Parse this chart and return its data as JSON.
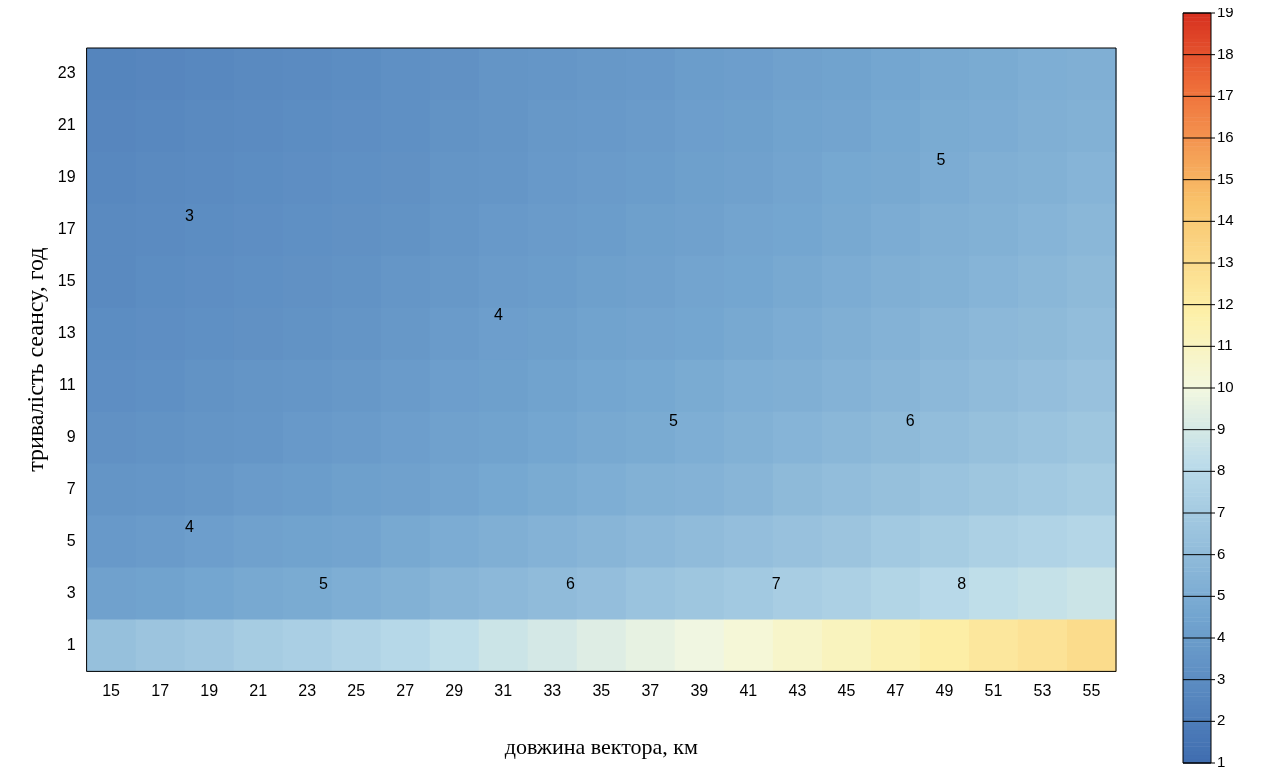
{
  "chart_data": {
    "type": "heatmap",
    "xlabel": "довжина вектора, км",
    "ylabel": "тривалість сеансу, год",
    "categories": [
      "15",
      "17",
      "19",
      "21",
      "23",
      "25",
      "27",
      "29",
      "31",
      "33",
      "35",
      "37",
      "39",
      "41",
      "43",
      "45",
      "47",
      "49",
      "51",
      "53",
      "55"
    ],
    "y_categories": [
      "23",
      "21",
      "19",
      "17",
      "15",
      "13",
      "11",
      "9",
      "7",
      "5",
      "3",
      "1"
    ],
    "cells": [
      [
        2.5,
        2.6,
        2.7,
        2.8,
        2.9,
        3.0,
        3.2,
        3.3,
        3.5,
        3.6,
        3.7,
        3.8,
        4.0,
        4.1,
        4.3,
        4.4,
        4.6,
        4.8,
        4.9,
        5.1,
        5.2
      ],
      [
        2.6,
        2.7,
        2.8,
        2.9,
        3.0,
        3.1,
        3.2,
        3.4,
        3.5,
        3.7,
        3.8,
        3.9,
        4.1,
        4.2,
        4.4,
        4.5,
        4.7,
        4.9,
        5.0,
        5.2,
        5.3
      ],
      [
        2.7,
        2.8,
        2.9,
        3.0,
        3.1,
        3.2,
        3.3,
        3.5,
        3.6,
        3.8,
        3.9,
        4.0,
        4.2,
        4.3,
        4.5,
        4.7,
        4.8,
        5.0,
        5.2,
        5.3,
        5.5
      ],
      [
        2.8,
        2.9,
        3.0,
        3.1,
        3.2,
        3.3,
        3.4,
        3.6,
        3.8,
        3.9,
        4.0,
        4.2,
        4.3,
        4.5,
        4.6,
        4.8,
        5.0,
        5.2,
        5.3,
        5.5,
        5.7
      ],
      [
        2.8,
        3.0,
        3.1,
        3.2,
        3.3,
        3.4,
        3.6,
        3.7,
        3.9,
        4.0,
        4.2,
        4.3,
        4.5,
        4.6,
        4.8,
        5.0,
        5.2,
        5.3,
        5.5,
        5.7,
        5.9
      ],
      [
        3.0,
        3.1,
        3.2,
        3.3,
        3.4,
        3.5,
        3.7,
        3.9,
        4.1,
        4.2,
        4.4,
        4.5,
        4.6,
        4.8,
        5.0,
        5.2,
        5.4,
        5.6,
        5.8,
        5.9,
        6.1
      ],
      [
        3.1,
        3.2,
        3.4,
        3.5,
        3.6,
        3.7,
        3.9,
        4.1,
        4.2,
        4.4,
        4.6,
        4.7,
        4.9,
        5.1,
        5.2,
        5.4,
        5.6,
        5.8,
        6.0,
        6.2,
        6.4
      ],
      [
        3.3,
        3.4,
        3.5,
        3.6,
        3.8,
        3.9,
        4.1,
        4.3,
        4.4,
        4.6,
        4.8,
        4.9,
        5.1,
        5.3,
        5.5,
        5.7,
        5.9,
        6.1,
        6.3,
        6.5,
        6.7
      ],
      [
        3.5,
        3.6,
        3.7,
        3.9,
        4.0,
        4.2,
        4.3,
        4.5,
        4.7,
        4.9,
        5.1,
        5.3,
        5.4,
        5.6,
        5.9,
        6.1,
        6.3,
        6.5,
        6.7,
        6.9,
        7.1
      ],
      [
        3.8,
        3.9,
        4.1,
        4.3,
        4.4,
        4.5,
        4.8,
        5.0,
        5.2,
        5.4,
        5.6,
        5.8,
        6.0,
        6.2,
        6.4,
        6.6,
        6.9,
        7.1,
        7.4,
        7.6,
        7.8
      ],
      [
        4.3,
        4.4,
        4.6,
        4.8,
        4.9,
        5.1,
        5.3,
        5.6,
        5.8,
        6.0,
        6.2,
        6.5,
        6.7,
        6.9,
        7.2,
        7.4,
        7.7,
        8.0,
        8.3,
        8.5,
        8.7
      ],
      [
        6.3,
        6.6,
        6.8,
        7.1,
        7.3,
        7.6,
        7.9,
        8.3,
        8.7,
        9.0,
        9.3,
        9.6,
        9.9,
        10.3,
        10.7,
        11.1,
        11.5,
        11.9,
        12.3,
        12.6,
        13.0
      ]
    ],
    "clim": [
      1,
      19
    ],
    "cticks": [
      1,
      2,
      3,
      4,
      5,
      6,
      7,
      8,
      9,
      10,
      11,
      12,
      13,
      14,
      15,
      16,
      17,
      18,
      19
    ],
    "annotations": [
      "3",
      "4",
      "5",
      "4",
      "5",
      "6",
      "5",
      "6",
      "7",
      "8"
    ]
  }
}
